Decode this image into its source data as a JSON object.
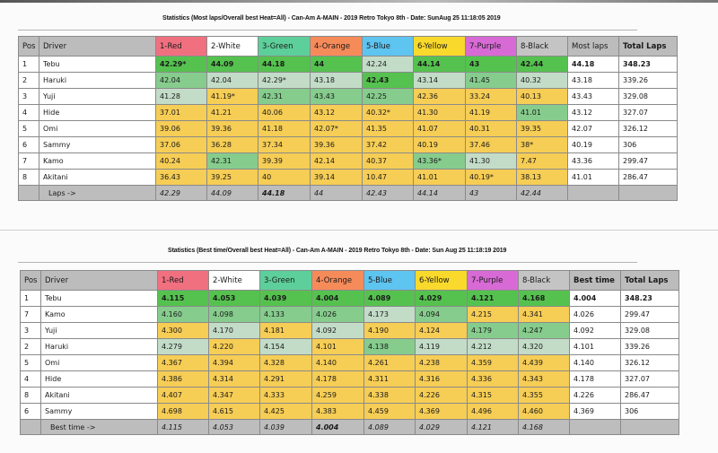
{
  "tables": [
    {
      "title": "Statistics (Most laps/Overall best Heat=All) - Can-Am A-MAIN - 2019 Retro Tokyo 8th - Date: SunAug 25 11:18:05 2019",
      "headers": [
        "Pos",
        "Driver",
        "1-Red",
        "2-White",
        "3-Green",
        "4-Orange",
        "5-Blue",
        "6-Yellow",
        "7-Purple",
        "8-Black",
        "Most laps",
        "Total Laps"
      ],
      "header_colors": [
        "#f07080",
        "#ffffff",
        "#5dcf9a",
        "#f68b5a",
        "#5ec4f0",
        "#f9d92c",
        "#d86ad6",
        "#c4c4c4"
      ],
      "rows": [
        {
          "pos": "1",
          "driver": "Tebu",
          "cells": [
            "42.29*",
            "44.09",
            "44.18",
            "44",
            "42.24",
            "44.14",
            "43",
            "42.44"
          ],
          "shade": [
            "best",
            "best",
            "best",
            "best",
            "light",
            "best",
            "best",
            "best"
          ],
          "summary": "44.18",
          "total": "348.23",
          "bold_summary": true
        },
        {
          "pos": "2",
          "driver": "Haruki",
          "cells": [
            "42.04",
            "42.04",
            "42.29*",
            "43.18",
            "42.43",
            "43.14",
            "41.45",
            "40.32"
          ],
          "shade": [
            "mid",
            "light",
            "light",
            "light",
            "best",
            "light",
            "mid",
            "light"
          ],
          "summary": "43.18",
          "total": "339.26",
          "bold_summary": false
        },
        {
          "pos": "3",
          "driver": "Yuji",
          "cells": [
            "41.28",
            "41.19*",
            "42.31",
            "43.43",
            "42.25",
            "42.36",
            "33.24",
            "40.13"
          ],
          "shade": [
            "light",
            "low",
            "mid",
            "mid",
            "mid",
            "low",
            "low",
            "low"
          ],
          "summary": "43.43",
          "total": "329.08",
          "bold_summary": false
        },
        {
          "pos": "4",
          "driver": "Hide",
          "cells": [
            "37.01",
            "41.21",
            "40.06",
            "43.12",
            "40.32*",
            "41.30",
            "41.19",
            "41.01"
          ],
          "shade": [
            "low",
            "low",
            "low",
            "low",
            "low",
            "low",
            "low",
            "mid"
          ],
          "summary": "43.12",
          "total": "327.07",
          "bold_summary": false
        },
        {
          "pos": "5",
          "driver": "Omi",
          "cells": [
            "39.06",
            "39.36",
            "41.18",
            "42.07*",
            "41.35",
            "41.07",
            "40.31",
            "39.35"
          ],
          "shade": [
            "low",
            "low",
            "low",
            "low",
            "low",
            "low",
            "low",
            "low"
          ],
          "summary": "42.07",
          "total": "326.12",
          "bold_summary": false
        },
        {
          "pos": "6",
          "driver": "Sammy",
          "cells": [
            "37.06",
            "36.28",
            "37.34",
            "39.36",
            "37.42",
            "40.19",
            "37.46",
            "38*"
          ],
          "shade": [
            "low",
            "low",
            "low",
            "low",
            "low",
            "low",
            "low",
            "low"
          ],
          "summary": "40.19",
          "total": "306",
          "bold_summary": false
        },
        {
          "pos": "7",
          "driver": "Kamo",
          "cells": [
            "40.24",
            "42.31",
            "39.39",
            "42.14",
            "40.37",
            "43.36*",
            "41.30",
            "7.47"
          ],
          "shade": [
            "low",
            "mid",
            "low",
            "low",
            "low",
            "mid",
            "light",
            "low"
          ],
          "summary": "43.36",
          "total": "299.47",
          "bold_summary": false
        },
        {
          "pos": "8",
          "driver": "Akitani",
          "cells": [
            "36.43",
            "39.25",
            "40",
            "39.14",
            "10.47",
            "41.01",
            "40.19*",
            "38.13"
          ],
          "shade": [
            "low",
            "low",
            "low",
            "low",
            "low",
            "low",
            "low",
            "low"
          ],
          "summary": "41.01",
          "total": "286.47",
          "bold_summary": false
        }
      ],
      "footer": {
        "label": "Laps ->",
        "values": [
          "42.29",
          "44.09",
          "44.18",
          "44",
          "42.43",
          "44.14",
          "43",
          "42.44"
        ],
        "bold": [
          false,
          false,
          true,
          false,
          false,
          false,
          false,
          false
        ]
      }
    },
    {
      "title": "Statistics (Best time/Overall best Heat=All) - Can-Am A-MAIN - 2019 Retro Tokyo 8th - Date: Sun Aug 25 11:18:19 2019",
      "headers": [
        "Pos",
        "Driver",
        "1-Red",
        "2-White",
        "3-Green",
        "4-Orange",
        "5-Blue",
        "6-Yellow",
        "7-Purple",
        "8-Black",
        "Best time",
        "Total Laps"
      ],
      "header_colors": [
        "#f07080",
        "#ffffff",
        "#5dcf9a",
        "#f68b5a",
        "#5ec4f0",
        "#f9d92c",
        "#d86ad6",
        "#c4c4c4"
      ],
      "rows": [
        {
          "pos": "1",
          "driver": "Tebu",
          "cells": [
            "4.115",
            "4.053",
            "4.039",
            "4.004",
            "4.089",
            "4.029",
            "4.121",
            "4.168"
          ],
          "shade": [
            "best",
            "best",
            "best",
            "best",
            "best",
            "best",
            "best",
            "best"
          ],
          "summary": "4.004",
          "total": "348.23",
          "bold_summary": true
        },
        {
          "pos": "7",
          "driver": "Kamo",
          "cells": [
            "4.160",
            "4.098",
            "4.133",
            "4.026",
            "4.173",
            "4.094",
            "4.215",
            "4.341"
          ],
          "shade": [
            "mid",
            "mid",
            "mid",
            "mid",
            "light",
            "mid",
            "low",
            "low"
          ],
          "summary": "4.026",
          "total": "299.47",
          "bold_summary": false
        },
        {
          "pos": "3",
          "driver": "Yuji",
          "cells": [
            "4.300",
            "4.170",
            "4.181",
            "4.092",
            "4.190",
            "4.124",
            "4.179",
            "4.247"
          ],
          "shade": [
            "low",
            "light",
            "low",
            "light",
            "low",
            "low",
            "mid",
            "mid"
          ],
          "summary": "4.092",
          "total": "329.08",
          "bold_summary": false
        },
        {
          "pos": "2",
          "driver": "Haruki",
          "cells": [
            "4.279",
            "4.220",
            "4.154",
            "4.101",
            "4.138",
            "4.119",
            "4.212",
            "4.320"
          ],
          "shade": [
            "light",
            "low",
            "light",
            "low",
            "mid",
            "light",
            "light",
            "light"
          ],
          "summary": "4.101",
          "total": "339.26",
          "bold_summary": false
        },
        {
          "pos": "5",
          "driver": "Omi",
          "cells": [
            "4.367",
            "4.394",
            "4.328",
            "4.140",
            "4.261",
            "4.238",
            "4.359",
            "4.439"
          ],
          "shade": [
            "low",
            "low",
            "low",
            "low",
            "low",
            "low",
            "low",
            "low"
          ],
          "summary": "4.140",
          "total": "326.12",
          "bold_summary": false
        },
        {
          "pos": "4",
          "driver": "Hide",
          "cells": [
            "4.386",
            "4.314",
            "4.291",
            "4.178",
            "4.311",
            "4.316",
            "4.336",
            "4.343"
          ],
          "shade": [
            "low",
            "low",
            "low",
            "low",
            "low",
            "low",
            "low",
            "low"
          ],
          "summary": "4.178",
          "total": "327.07",
          "bold_summary": false
        },
        {
          "pos": "8",
          "driver": "Akitani",
          "cells": [
            "4.407",
            "4.347",
            "4.333",
            "4.259",
            "4.338",
            "4.226",
            "4.315",
            "4.355"
          ],
          "shade": [
            "low",
            "low",
            "low",
            "low",
            "low",
            "low",
            "low",
            "low"
          ],
          "summary": "4.226",
          "total": "286.47",
          "bold_summary": false
        },
        {
          "pos": "6",
          "driver": "Sammy",
          "cells": [
            "4.698",
            "4.615",
            "4.425",
            "4.383",
            "4.459",
            "4.369",
            "4.496",
            "4.460"
          ],
          "shade": [
            "low",
            "low",
            "low",
            "low",
            "low",
            "low",
            "low",
            "low"
          ],
          "summary": "4.369",
          "total": "306",
          "bold_summary": false
        }
      ],
      "footer": {
        "label": "Best time ->",
        "values": [
          "4.115",
          "4.053",
          "4.039",
          "4.004",
          "4.089",
          "4.029",
          "4.121",
          "4.168"
        ],
        "bold": [
          false,
          false,
          false,
          true,
          false,
          false,
          false,
          false
        ]
      }
    }
  ]
}
